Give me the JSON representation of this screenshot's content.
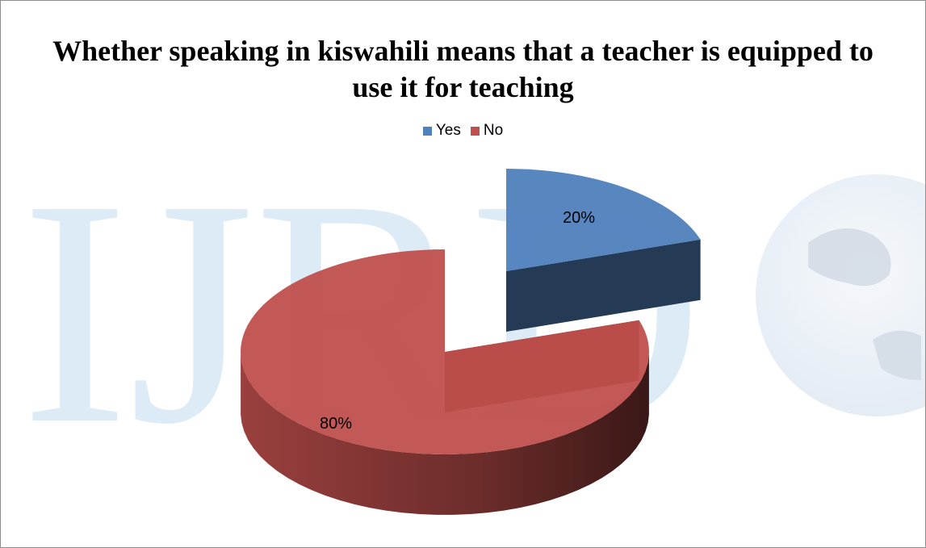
{
  "chart_data": {
    "type": "pie",
    "title": "Whether speaking in kiswahili means that a teacher is equipped to use it for teaching",
    "categories": [
      "Yes",
      "No"
    ],
    "values": [
      20,
      80
    ],
    "data_labels": [
      "20%",
      "80%"
    ],
    "colors": [
      "#4f81bd",
      "#c0504d"
    ],
    "legend_position": "top",
    "style": "3d-exploded"
  },
  "watermark": {
    "text": "IJRD",
    "color": "#dcebf6"
  }
}
